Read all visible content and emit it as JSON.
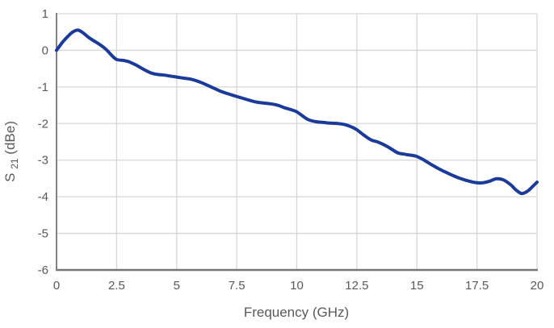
{
  "chart_data": {
    "type": "line",
    "title": "",
    "xlabel": "Frequency (GHz)",
    "ylabel": "S21 (dBe)",
    "ylabel_parts": {
      "base": "S",
      "sub": "21",
      "rest": " (dBe)"
    },
    "xlim": [
      0,
      20
    ],
    "ylim": [
      -6,
      1
    ],
    "xticks": [
      0,
      2.5,
      5,
      7.5,
      10,
      12.5,
      15,
      17.5,
      20
    ],
    "xtick_labels": [
      "0",
      "2.5",
      "5",
      "7.5",
      "10",
      "12.5",
      "15",
      "17.5",
      "20"
    ],
    "yticks": [
      1,
      0,
      -1,
      -2,
      -3,
      -4,
      -5,
      -6
    ],
    "ytick_labels": [
      "1",
      "0",
      "-1",
      "-2",
      "-3",
      "-4",
      "-5",
      "-6"
    ],
    "grid": true,
    "legend": false,
    "series": [
      {
        "name": "S21",
        "color": "#1a3a9c",
        "points": [
          [
            0,
            0.0
          ],
          [
            0.25,
            0.22
          ],
          [
            0.5,
            0.4
          ],
          [
            0.7,
            0.51
          ],
          [
            0.9,
            0.55
          ],
          [
            1.1,
            0.48
          ],
          [
            1.3,
            0.37
          ],
          [
            1.5,
            0.28
          ],
          [
            1.7,
            0.2
          ],
          [
            1.9,
            0.11
          ],
          [
            2.1,
            0.0
          ],
          [
            2.3,
            -0.14
          ],
          [
            2.5,
            -0.25
          ],
          [
            2.8,
            -0.28
          ],
          [
            3.0,
            -0.31
          ],
          [
            3.3,
            -0.4
          ],
          [
            3.6,
            -0.51
          ],
          [
            3.9,
            -0.61
          ],
          [
            4.2,
            -0.66
          ],
          [
            4.5,
            -0.68
          ],
          [
            4.8,
            -0.71
          ],
          [
            5.0,
            -0.73
          ],
          [
            5.3,
            -0.76
          ],
          [
            5.6,
            -0.79
          ],
          [
            5.9,
            -0.85
          ],
          [
            6.2,
            -0.93
          ],
          [
            6.5,
            -1.02
          ],
          [
            6.8,
            -1.11
          ],
          [
            7.1,
            -1.18
          ],
          [
            7.4,
            -1.24
          ],
          [
            7.7,
            -1.3
          ],
          [
            8.0,
            -1.36
          ],
          [
            8.3,
            -1.41
          ],
          [
            8.6,
            -1.44
          ],
          [
            8.9,
            -1.46
          ],
          [
            9.2,
            -1.5
          ],
          [
            9.5,
            -1.57
          ],
          [
            9.8,
            -1.63
          ],
          [
            10.0,
            -1.68
          ],
          [
            10.3,
            -1.82
          ],
          [
            10.5,
            -1.9
          ],
          [
            10.8,
            -1.95
          ],
          [
            11.1,
            -1.97
          ],
          [
            11.4,
            -1.99
          ],
          [
            11.7,
            -2.0
          ],
          [
            12.0,
            -2.03
          ],
          [
            12.3,
            -2.1
          ],
          [
            12.5,
            -2.17
          ],
          [
            12.8,
            -2.32
          ],
          [
            13.1,
            -2.45
          ],
          [
            13.35,
            -2.5
          ],
          [
            13.6,
            -2.57
          ],
          [
            13.9,
            -2.68
          ],
          [
            14.2,
            -2.8
          ],
          [
            14.5,
            -2.84
          ],
          [
            14.8,
            -2.87
          ],
          [
            15.0,
            -2.9
          ],
          [
            15.3,
            -3.0
          ],
          [
            15.6,
            -3.12
          ],
          [
            15.9,
            -3.23
          ],
          [
            16.2,
            -3.33
          ],
          [
            16.5,
            -3.42
          ],
          [
            16.8,
            -3.5
          ],
          [
            17.1,
            -3.56
          ],
          [
            17.4,
            -3.61
          ],
          [
            17.7,
            -3.62
          ],
          [
            18.0,
            -3.58
          ],
          [
            18.3,
            -3.51
          ],
          [
            18.6,
            -3.54
          ],
          [
            18.9,
            -3.67
          ],
          [
            19.1,
            -3.8
          ],
          [
            19.35,
            -3.91
          ],
          [
            19.6,
            -3.85
          ],
          [
            19.8,
            -3.73
          ],
          [
            20.0,
            -3.6
          ]
        ]
      }
    ]
  },
  "colors": {
    "line": "#1a3a9c",
    "gridline": "#d6d6d6",
    "axis_line": "#767676",
    "tick_text": "#595959",
    "background": "#ffffff"
  }
}
